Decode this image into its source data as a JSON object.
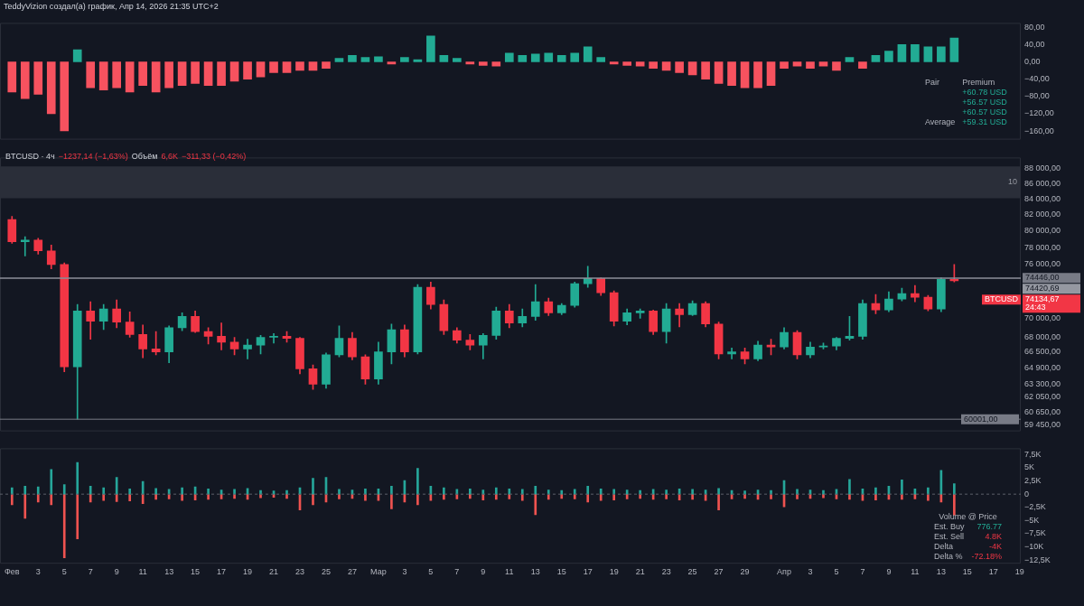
{
  "chart_data": [
    {
      "type": "bar",
      "title": "TeddyVizion создал(а) график, Апр 14, 2026 21:35 UTC+2",
      "x": [
        "2026-02-01",
        "2026-02-02",
        "2026-02-03",
        "2026-02-04",
        "2026-02-05",
        "2026-02-06",
        "2026-02-07",
        "2026-02-08",
        "2026-02-09",
        "2026-02-10",
        "2026-02-11",
        "2026-02-12",
        "2026-02-13",
        "2026-02-14",
        "2026-02-15",
        "2026-02-16",
        "2026-02-17",
        "2026-02-18",
        "2026-02-19",
        "2026-02-20",
        "2026-02-21",
        "2026-02-22",
        "2026-02-23",
        "2026-02-24",
        "2026-02-25",
        "2026-02-26",
        "2026-02-27",
        "2026-02-28",
        "2026-03-01",
        "2026-03-02",
        "2026-03-03",
        "2026-03-04",
        "2026-03-05",
        "2026-03-06",
        "2026-03-07",
        "2026-03-08",
        "2026-03-09",
        "2026-03-10",
        "2026-03-11",
        "2026-03-12",
        "2026-03-13",
        "2026-03-14",
        "2026-03-15",
        "2026-03-16",
        "2026-03-17",
        "2026-03-18",
        "2026-03-19",
        "2026-03-20",
        "2026-03-21",
        "2026-03-22",
        "2026-03-23",
        "2026-03-24",
        "2026-03-25",
        "2026-03-26",
        "2026-03-27",
        "2026-03-28",
        "2026-03-29",
        "2026-03-30",
        "2026-03-31",
        "2026-04-01",
        "2026-04-02",
        "2026-04-03",
        "2026-04-04",
        "2026-04-05",
        "2026-04-06",
        "2026-04-07",
        "2026-04-08",
        "2026-04-09",
        "2026-04-10",
        "2026-04-11",
        "2026-04-12",
        "2026-04-13",
        "2026-04-14"
      ],
      "values": [
        -70,
        -85,
        -75,
        -120,
        -160,
        28,
        -60,
        -65,
        -60,
        -70,
        -55,
        -70,
        -60,
        -55,
        -50,
        -55,
        -55,
        -45,
        -40,
        -35,
        -25,
        -25,
        -20,
        -20,
        -15,
        8,
        15,
        10,
        12,
        -5,
        10,
        5,
        60,
        15,
        8,
        -5,
        -8,
        -10,
        20,
        15,
        18,
        20,
        15,
        20,
        35,
        10,
        -5,
        -8,
        -10,
        -15,
        -20,
        -25,
        -30,
        -40,
        -50,
        -55,
        -60,
        -60,
        -55,
        -15,
        -10,
        -15,
        -10,
        -20,
        10,
        -15,
        15,
        25,
        40,
        40,
        35,
        35,
        55
      ],
      "colors": [
        "#f7525f",
        "#f7525f",
        "#f7525f",
        "#f7525f",
        "#f7525f",
        "#22ab94",
        "#f7525f",
        "#f7525f",
        "#f7525f",
        "#f7525f",
        "#f7525f",
        "#f7525f",
        "#f7525f",
        "#f7525f",
        "#f7525f",
        "#f7525f",
        "#f7525f",
        "#f7525f",
        "#f7525f",
        "#f7525f",
        "#f7525f",
        "#f7525f",
        "#f7525f",
        "#f7525f",
        "#f7525f",
        "#22ab94",
        "#22ab94",
        "#22ab94",
        "#22ab94",
        "#f7525f",
        "#22ab94",
        "#22ab94",
        "#22ab94",
        "#22ab94",
        "#22ab94",
        "#f7525f",
        "#f7525f",
        "#f7525f",
        "#22ab94",
        "#22ab94",
        "#22ab94",
        "#22ab94",
        "#22ab94",
        "#22ab94",
        "#22ab94",
        "#22ab94",
        "#f7525f",
        "#f7525f",
        "#f7525f",
        "#f7525f",
        "#f7525f",
        "#f7525f",
        "#f7525f",
        "#f7525f",
        "#f7525f",
        "#f7525f",
        "#f7525f",
        "#f7525f",
        "#f7525f",
        "#f7525f",
        "#f7525f",
        "#f7525f",
        "#f7525f",
        "#f7525f",
        "#22ab94",
        "#f7525f",
        "#22ab94",
        "#22ab94",
        "#22ab94",
        "#22ab94",
        "#22ab94",
        "#22ab94",
        "#22ab94"
      ],
      "xlim": [
        "2026-01-31T02:00",
        "2026-04-19T02:00"
      ],
      "ylim": [
        -180,
        90
      ],
      "yticks": [
        {
          "value": 80,
          "label": "80,00"
        },
        {
          "value": 40,
          "label": "40,00"
        },
        {
          "value": 0,
          "label": "0,00"
        },
        {
          "value": -40,
          "label": "−40,00"
        },
        {
          "value": -80,
          "label": "−80,00"
        },
        {
          "value": -120,
          "label": "−120,00"
        },
        {
          "value": -160,
          "label": "−160,00"
        }
      ],
      "tick_labels": "y",
      "annotations": [
        "Pair",
        "Premium",
        "+60.78 USD",
        "+56.57 USD",
        "+60.57 USD",
        "Average",
        "+59.31 USD"
      ]
    },
    {
      "type": "candlestick",
      "title": "BTCUSD · 4ч",
      "log": true,
      "x": [
        "2026-02-01",
        "2026-02-02",
        "2026-02-03",
        "2026-02-04",
        "2026-02-05",
        "2026-02-06",
        "2026-02-07",
        "2026-02-08",
        "2026-02-09",
        "2026-02-10",
        "2026-02-11",
        "2026-02-12",
        "2026-02-13",
        "2026-02-14",
        "2026-02-15",
        "2026-02-16",
        "2026-02-17",
        "2026-02-18",
        "2026-02-19",
        "2026-02-20",
        "2026-02-21",
        "2026-02-22",
        "2026-02-23",
        "2026-02-24",
        "2026-02-25",
        "2026-02-26",
        "2026-02-27",
        "2026-02-28",
        "2026-03-01",
        "2026-03-02",
        "2026-03-03",
        "2026-03-04",
        "2026-03-05",
        "2026-03-06",
        "2026-03-07",
        "2026-03-08",
        "2026-03-09",
        "2026-03-10",
        "2026-03-11",
        "2026-03-12",
        "2026-03-13",
        "2026-03-14",
        "2026-03-15",
        "2026-03-16",
        "2026-03-17",
        "2026-03-18",
        "2026-03-19",
        "2026-03-20",
        "2026-03-21",
        "2026-03-22",
        "2026-03-23",
        "2026-03-24",
        "2026-03-25",
        "2026-03-26",
        "2026-03-27",
        "2026-03-28",
        "2026-03-29",
        "2026-03-30",
        "2026-03-31",
        "2026-04-01",
        "2026-04-02",
        "2026-04-03",
        "2026-04-04",
        "2026-04-05",
        "2026-04-06",
        "2026-04-07",
        "2026-04-08",
        "2026-04-09",
        "2026-04-10",
        "2026-04-11",
        "2026-04-12",
        "2026-04-13",
        "2026-04-14"
      ],
      "ohlc": [
        [
          81400,
          81800,
          78500,
          78700
        ],
        [
          78700,
          79300,
          77000,
          78900
        ],
        [
          78900,
          79100,
          77200,
          77600
        ],
        [
          77600,
          78300,
          75500,
          76000
        ],
        [
          76000,
          76200,
          64500,
          65000
        ],
        [
          65000,
          71500,
          60001,
          70800
        ],
        [
          70800,
          71800,
          67800,
          69700
        ],
        [
          69700,
          71500,
          68800,
          71000
        ],
        [
          71000,
          72000,
          69000,
          69600
        ],
        [
          69600,
          70700,
          68000,
          68300
        ],
        [
          68300,
          69300,
          65900,
          66800
        ],
        [
          66800,
          68600,
          66200,
          66500
        ],
        [
          66500,
          69200,
          65400,
          69000
        ],
        [
          69000,
          70600,
          68700,
          70200
        ],
        [
          70200,
          70800,
          68500,
          68600
        ],
        [
          68600,
          69000,
          67300,
          68100
        ],
        [
          68100,
          69500,
          66700,
          67500
        ],
        [
          67500,
          68000,
          66200,
          66800
        ],
        [
          66800,
          67800,
          65800,
          67200
        ],
        [
          67200,
          68200,
          66300,
          68000
        ],
        [
          68000,
          68400,
          67400,
          68100
        ],
        [
          68100,
          68600,
          67500,
          67900
        ],
        [
          67900,
          68000,
          64300,
          64800
        ],
        [
          64800,
          65200,
          62800,
          63300
        ],
        [
          63300,
          66400,
          62900,
          66200
        ],
        [
          66200,
          69200,
          66000,
          67900
        ],
        [
          67900,
          68500,
          65700,
          66000
        ],
        [
          66000,
          66200,
          63300,
          63800
        ],
        [
          63800,
          67500,
          63300,
          66500
        ],
        [
          66500,
          69400,
          65300,
          68800
        ],
        [
          68800,
          69300,
          66000,
          66500
        ],
        [
          66500,
          73700,
          66300,
          73400
        ],
        [
          73400,
          74000,
          71000,
          71500
        ],
        [
          71500,
          72000,
          68300,
          68700
        ],
        [
          68700,
          69000,
          67400,
          67700
        ],
        [
          67700,
          68300,
          66700,
          67200
        ],
        [
          67200,
          68400,
          65800,
          68200
        ],
        [
          68200,
          71200,
          67800,
          70800
        ],
        [
          70800,
          71500,
          69000,
          69500
        ],
        [
          69500,
          71000,
          69100,
          70200
        ],
        [
          70200,
          73700,
          69800,
          71800
        ],
        [
          71800,
          72200,
          70300,
          70600
        ],
        [
          70600,
          71600,
          70400,
          71400
        ],
        [
          71400,
          74000,
          71200,
          73800
        ],
        [
          73800,
          75800,
          73400,
          74400
        ],
        [
          74400,
          74500,
          72500,
          72800
        ],
        [
          72800,
          73000,
          69200,
          69700
        ],
        [
          69700,
          71000,
          69300,
          70600
        ],
        [
          70600,
          71000,
          70000,
          70800
        ],
        [
          70800,
          70900,
          68300,
          68600
        ],
        [
          68600,
          71600,
          67400,
          71000
        ],
        [
          71000,
          71600,
          69100,
          70400
        ],
        [
          70400,
          71900,
          70300,
          71600
        ],
        [
          71600,
          71800,
          69100,
          69400
        ],
        [
          69400,
          69600,
          65800,
          66300
        ],
        [
          66300,
          66900,
          65800,
          66500
        ],
        [
          66500,
          66900,
          65300,
          65800
        ],
        [
          65800,
          67600,
          65600,
          67200
        ],
        [
          67200,
          67800,
          66200,
          67000
        ],
        [
          67000,
          69000,
          66800,
          68500
        ],
        [
          68500,
          68700,
          65800,
          66200
        ],
        [
          66200,
          67500,
          65900,
          67000
        ],
        [
          67000,
          67400,
          66800,
          67100
        ],
        [
          67100,
          68000,
          66700,
          67900
        ],
        [
          67900,
          70200,
          67700,
          68100
        ],
        [
          68100,
          72000,
          67800,
          71600
        ],
        [
          71600,
          72600,
          70500,
          70900
        ],
        [
          70900,
          72900,
          70700,
          72100
        ],
        [
          72100,
          73300,
          71900,
          72700
        ],
        [
          72700,
          73600,
          71800,
          72300
        ],
        [
          72300,
          72500,
          70800,
          71000
        ],
        [
          71000,
          74500,
          70700,
          74300
        ],
        [
          74300,
          76000,
          74000,
          74134.67
        ]
      ],
      "colors": [
        "#f23645",
        "#22ab94",
        "#f23645",
        "#f23645",
        "#f23645",
        "#22ab94",
        "#f23645",
        "#22ab94",
        "#f23645",
        "#f23645",
        "#f23645",
        "#f23645",
        "#22ab94",
        "#22ab94",
        "#f23645",
        "#f23645",
        "#f23645",
        "#f23645",
        "#22ab94",
        "#22ab94",
        "#22ab94",
        "#f23645",
        "#f23645",
        "#f23645",
        "#22ab94",
        "#22ab94",
        "#f23645",
        "#f23645",
        "#22ab94",
        "#22ab94",
        "#f23645",
        "#22ab94",
        "#f23645",
        "#f23645",
        "#f23645",
        "#f23645",
        "#22ab94",
        "#22ab94",
        "#f23645",
        "#22ab94",
        "#22ab94",
        "#f23645",
        "#22ab94",
        "#22ab94",
        "#22ab94",
        "#f23645",
        "#f23645",
        "#22ab94",
        "#22ab94",
        "#f23645",
        "#22ab94",
        "#f23645",
        "#22ab94",
        "#f23645",
        "#f23645",
        "#22ab94",
        "#f23645",
        "#22ab94",
        "#f23645",
        "#22ab94",
        "#f23645",
        "#22ab94",
        "#22ab94",
        "#22ab94",
        "#22ab94",
        "#22ab94",
        "#f23645",
        "#22ab94",
        "#22ab94",
        "#f23645",
        "#f23645",
        "#22ab94",
        "#f23645"
      ],
      "xlim": [
        "2026-01-31T02:00",
        "2026-04-19T02:00"
      ],
      "ylim": [
        58900,
        89500
      ],
      "yticks": [
        {
          "value": 88000,
          "label": "88 000,00"
        },
        {
          "value": 86000,
          "label": "86 000,00"
        },
        {
          "value": 84000,
          "label": "84 000,00"
        },
        {
          "value": 82000,
          "label": "82 000,00"
        },
        {
          "value": 80000,
          "label": "80 000,00"
        },
        {
          "value": 78000,
          "label": "78 000,00"
        },
        {
          "value": 76000,
          "label": "76 000,00"
        },
        {
          "value": 70000,
          "label": "70 000,00"
        },
        {
          "value": 68000,
          "label": "68 000,00"
        },
        {
          "value": 66500,
          "label": "66 500,00"
        },
        {
          "value": 64900,
          "label": "64 900,00"
        },
        {
          "value": 63300,
          "label": "63 300,00"
        },
        {
          "value": 62050,
          "label": "62 050,00"
        },
        {
          "value": 60650,
          "label": "60 650,00"
        },
        {
          "value": 59450,
          "label": "59 450,00"
        }
      ],
      "tick_labels": "y",
      "ref_lines": [
        {
          "axis": "y",
          "value": 74446,
          "label": "74446,00",
          "color": "#787b86"
        },
        {
          "axis": "y",
          "value": 74420.69,
          "label": "74420,69",
          "color": "#9598a1"
        },
        {
          "axis": "y",
          "value": 60001,
          "label": "60001,00",
          "color": "#787b86"
        }
      ],
      "bands": [
        {
          "axis": "y",
          "from": 84100,
          "to": 88300,
          "label": "10",
          "color": "#2a2e39"
        }
      ],
      "annotations": [
        "74134,67",
        "BTCUSD",
        "24:43",
        "−1237,14 (−1,63%)",
        "Объём",
        "6,6K",
        "−311,33 (−0,42%)"
      ]
    },
    {
      "type": "bar",
      "stacked": true,
      "x": [
        "2026-02-01",
        "2026-02-02",
        "2026-02-03",
        "2026-02-04",
        "2026-02-05",
        "2026-02-06",
        "2026-02-07",
        "2026-02-08",
        "2026-02-09",
        "2026-02-10",
        "2026-02-11",
        "2026-02-12",
        "2026-02-13",
        "2026-02-14",
        "2026-02-15",
        "2026-02-16",
        "2026-02-17",
        "2026-02-18",
        "2026-02-19",
        "2026-02-20",
        "2026-02-21",
        "2026-02-22",
        "2026-02-23",
        "2026-02-24",
        "2026-02-25",
        "2026-02-26",
        "2026-02-27",
        "2026-02-28",
        "2026-03-01",
        "2026-03-02",
        "2026-03-03",
        "2026-03-04",
        "2026-03-05",
        "2026-03-06",
        "2026-03-07",
        "2026-03-08",
        "2026-03-09",
        "2026-03-10",
        "2026-03-11",
        "2026-03-12",
        "2026-03-13",
        "2026-03-14",
        "2026-03-15",
        "2026-03-16",
        "2026-03-17",
        "2026-03-18",
        "2026-03-19",
        "2026-03-20",
        "2026-03-21",
        "2026-03-22",
        "2026-03-23",
        "2026-03-24",
        "2026-03-25",
        "2026-03-26",
        "2026-03-27",
        "2026-03-28",
        "2026-03-29",
        "2026-03-30",
        "2026-03-31",
        "2026-04-01",
        "2026-04-02",
        "2026-04-03",
        "2026-04-04",
        "2026-04-05",
        "2026-04-06",
        "2026-04-07",
        "2026-04-08",
        "2026-04-09",
        "2026-04-10",
        "2026-04-11",
        "2026-04-12",
        "2026-04-13",
        "2026-04-14"
      ],
      "series": [
        {
          "color": "#26a69a",
          "values": [
            1200,
            1500,
            1400,
            4700,
            1800,
            6000,
            1500,
            1200,
            3200,
            1000,
            2400,
            1100,
            900,
            1200,
            1400,
            1000,
            800,
            900,
            1100,
            700,
            600,
            700,
            1200,
            3000,
            3200,
            900,
            800,
            1000,
            1000,
            1500,
            2600,
            4900,
            1500,
            1200,
            900,
            1000,
            800,
            1200,
            1000,
            900,
            1500,
            800,
            700,
            900,
            1500,
            1000,
            900,
            800,
            700,
            900,
            800,
            1000,
            900,
            800,
            1100,
            700,
            600,
            800,
            700,
            2600,
            900,
            800,
            700,
            900,
            2800,
            1000,
            1200,
            1500,
            2700,
            1000,
            1200,
            4500,
            2000
          ]
        },
        {
          "color": "#ef5350",
          "values": [
            -2000,
            -4600,
            -1500,
            -2000,
            -12100,
            -8500,
            -1500,
            -1200,
            -1400,
            -1300,
            -1800,
            -1000,
            -900,
            -1200,
            -1100,
            -1000,
            -900,
            -800,
            -1000,
            -700,
            -600,
            -800,
            -3000,
            -2000,
            -1500,
            -900,
            -800,
            -1200,
            -1200,
            -2800,
            -1500,
            -2000,
            -1200,
            -1000,
            -900,
            -800,
            -1100,
            -1000,
            -900,
            -1200,
            -3900,
            -1000,
            -800,
            -900,
            -1500,
            -1200,
            -1100,
            -900,
            -800,
            -1000,
            -900,
            -1100,
            -1000,
            -1200,
            -3000,
            -900,
            -800,
            -1000,
            -900,
            -2400,
            -900,
            -800,
            -700,
            -900,
            -1000,
            -1200,
            -1100,
            -1000,
            -1000,
            -900,
            -1200,
            -1500,
            -4000
          ]
        }
      ],
      "xlim": [
        "2026-01-31T02:00",
        "2026-04-19T02:00"
      ],
      "xticks": [
        {
          "value": "2026-02-01",
          "label": "Фев"
        },
        {
          "value": "2026-02-03",
          "label": "3"
        },
        {
          "value": "2026-02-05",
          "label": "5"
        },
        {
          "value": "2026-02-07",
          "label": "7"
        },
        {
          "value": "2026-02-09",
          "label": "9"
        },
        {
          "value": "2026-02-11",
          "label": "11"
        },
        {
          "value": "2026-02-13",
          "label": "13"
        },
        {
          "value": "2026-02-15",
          "label": "15"
        },
        {
          "value": "2026-02-17",
          "label": "17"
        },
        {
          "value": "2026-02-19",
          "label": "19"
        },
        {
          "value": "2026-02-21",
          "label": "21"
        },
        {
          "value": "2026-02-23",
          "label": "23"
        },
        {
          "value": "2026-02-25",
          "label": "25"
        },
        {
          "value": "2026-02-27",
          "label": "27"
        },
        {
          "value": "2026-03-01",
          "label": "Мар"
        },
        {
          "value": "2026-03-03",
          "label": "3"
        },
        {
          "value": "2026-03-05",
          "label": "5"
        },
        {
          "value": "2026-03-07",
          "label": "7"
        },
        {
          "value": "2026-03-09",
          "label": "9"
        },
        {
          "value": "2026-03-11",
          "label": "11"
        },
        {
          "value": "2026-03-13",
          "label": "13"
        },
        {
          "value": "2026-03-15",
          "label": "15"
        },
        {
          "value": "2026-03-17",
          "label": "17"
        },
        {
          "value": "2026-03-19",
          "label": "19"
        },
        {
          "value": "2026-03-21",
          "label": "21"
        },
        {
          "value": "2026-03-23",
          "label": "23"
        },
        {
          "value": "2026-03-25",
          "label": "25"
        },
        {
          "value": "2026-03-27",
          "label": "27"
        },
        {
          "value": "2026-03-29",
          "label": "29"
        },
        {
          "value": "2026-04-01",
          "label": "Апр"
        },
        {
          "value": "2026-04-03",
          "label": "3"
        },
        {
          "value": "2026-04-05",
          "label": "5"
        },
        {
          "value": "2026-04-07",
          "label": "7"
        },
        {
          "value": "2026-04-09",
          "label": "9"
        },
        {
          "value": "2026-04-11",
          "label": "11"
        },
        {
          "value": "2026-04-13",
          "label": "13"
        },
        {
          "value": "2026-04-15",
          "label": "15"
        },
        {
          "value": "2026-04-17",
          "label": "17"
        },
        {
          "value": "2026-04-19",
          "label": "19"
        }
      ],
      "ylim": [
        -13200,
        8700
      ],
      "yticks": [
        {
          "value": 7500,
          "label": "7,5K"
        },
        {
          "value": 5000,
          "label": "5K"
        },
        {
          "value": 2500,
          "label": "2,5K"
        },
        0,
        {
          "value": -2500,
          "label": "−2,5K"
        },
        {
          "value": -5000,
          "label": "−5K"
        },
        {
          "value": -7500,
          "label": "−7,5K"
        },
        {
          "value": -10000,
          "label": "−10K"
        },
        {
          "value": -12500,
          "label": "−12,5K"
        }
      ],
      "ref_lines": [
        {
          "axis": "y",
          "value": 0,
          "line_style": "dashed",
          "color": "#5d606b"
        }
      ],
      "annotations": [
        "Volume @ Price",
        "Est. Buy",
        "776.77",
        "Est. Sell",
        "4.8K",
        "Delta",
        "-4K",
        "Delta %",
        "-72.18%"
      ]
    }
  ]
}
